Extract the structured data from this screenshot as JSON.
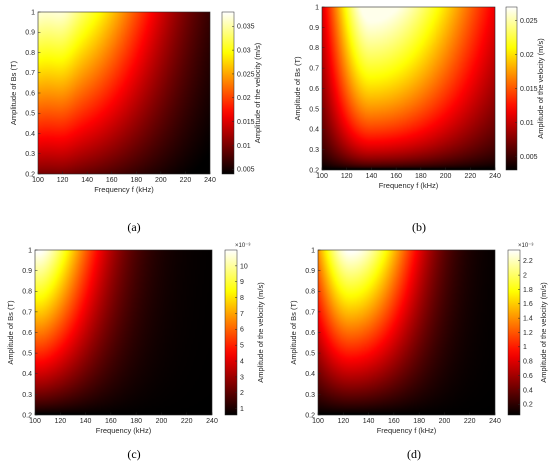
{
  "chart_data": [
    {
      "type": "heatmap",
      "panel_label": "(a)",
      "xlabel": "Frequency f (kHz)",
      "ylabel": "Amplitude of Bs (T)",
      "colorbar_label": "Amplitude of the velocity (m/s)",
      "colorbar_exponent": "",
      "x_ticks": [
        "100",
        "120",
        "140",
        "160",
        "180",
        "200",
        "220",
        "240"
      ],
      "y_ticks": [
        "0.2",
        "0.3",
        "0.4",
        "0.5",
        "0.6",
        "0.7",
        "0.8",
        "0.9",
        "1"
      ],
      "cbar_ticks": [
        "0.005",
        "0.01",
        "0.015",
        "0.02",
        "0.025",
        "0.03",
        "0.035"
      ],
      "xlim": [
        100,
        240
      ],
      "ylim": [
        0.2,
        1
      ],
      "clim": [
        0.004,
        0.038
      ],
      "peak_frequency_khz": 120,
      "colormap": "hot"
    },
    {
      "type": "heatmap",
      "panel_label": "(b)",
      "xlabel": "Frequency f (kHz)",
      "ylabel": "Amplitude of Bs (T)",
      "colorbar_label": "Amplitude of the velocity (m/s)",
      "colorbar_exponent": "",
      "x_ticks": [
        "100",
        "120",
        "140",
        "160",
        "180",
        "200",
        "220",
        "240"
      ],
      "y_ticks": [
        "0.2",
        "0.3",
        "0.4",
        "0.5",
        "0.6",
        "0.7",
        "0.8",
        "0.9",
        "1"
      ],
      "cbar_ticks": [
        "0.005",
        "0.01",
        "0.015",
        "0.02",
        "0.025"
      ],
      "xlim": [
        100,
        240
      ],
      "ylim": [
        0.2,
        1
      ],
      "clim": [
        0.003,
        0.027
      ],
      "peak_frequency_khz": 140,
      "colormap": "hot"
    },
    {
      "type": "heatmap",
      "panel_label": "(c)",
      "xlabel": "Frequency (kHz)",
      "ylabel": "Amplitude of Bs (T)",
      "colorbar_label": "Amplitude of the velocity (m/s)",
      "colorbar_exponent": "×10⁻³",
      "x_ticks": [
        "100",
        "120",
        "140",
        "160",
        "180",
        "200",
        "220",
        "240"
      ],
      "y_ticks": [
        "0.2",
        "0.3",
        "0.4",
        "0.5",
        "0.6",
        "0.7",
        "0.8",
        "0.9",
        "1"
      ],
      "cbar_ticks": [
        "1",
        "2",
        "3",
        "4",
        "5",
        "6",
        "7",
        "8",
        "9",
        "10"
      ],
      "xlim": [
        100,
        240
      ],
      "ylim": [
        0.2,
        1
      ],
      "clim": [
        0.6,
        11
      ],
      "peak_frequency_khz": 110,
      "colormap": "hot"
    },
    {
      "type": "heatmap",
      "panel_label": "(d)",
      "xlabel": "Frequency f (kHz)",
      "ylabel": "Amplitude of Bs (T)",
      "colorbar_label": "Amplitude of the velocity (m/s)",
      "colorbar_exponent": "×10⁻³",
      "x_ticks": [
        "100",
        "120",
        "140",
        "160",
        "180",
        "200",
        "220",
        "240"
      ],
      "y_ticks": [
        "0.2",
        "0.3",
        "0.4",
        "0.5",
        "0.6",
        "0.7",
        "0.8",
        "0.9",
        "1"
      ],
      "cbar_ticks": [
        "0.2",
        "0.4",
        "0.6",
        "0.8",
        "1",
        "1.2",
        "1.4",
        "1.6",
        "1.8",
        "2",
        "2.2"
      ],
      "xlim": [
        100,
        240
      ],
      "ylim": [
        0.2,
        1
      ],
      "clim": [
        0.05,
        2.35
      ],
      "peak_frequency_khz": 125,
      "colormap": "hot"
    }
  ]
}
